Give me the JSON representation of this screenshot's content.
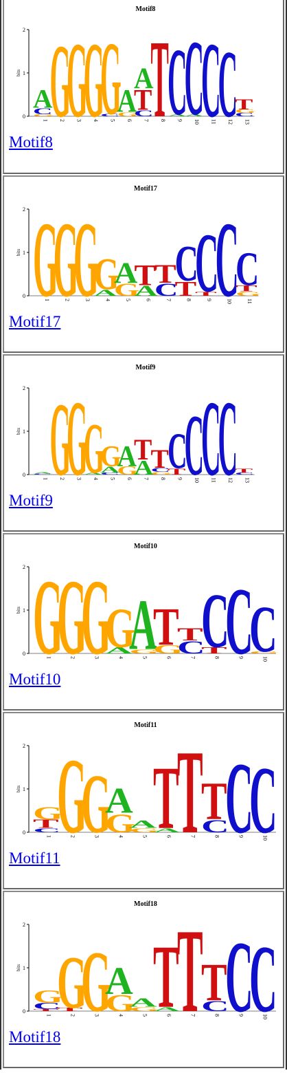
{
  "colors": {
    "A": "#1fb31f",
    "C": "#1010cc",
    "G": "#ffa500",
    "T": "#d01010",
    "link": "#0000ee"
  },
  "axis": {
    "ylabel": "bits",
    "ticks": [
      "0",
      "1",
      "2"
    ]
  },
  "motifs": [
    {
      "title": "Motif8",
      "link": "Motif8",
      "x0": 38,
      "colw": 24.5,
      "positions": [
        [
          [
            "A",
            0.45
          ],
          [
            "C",
            0.15
          ],
          [
            "G",
            0.05
          ]
        ],
        [
          [
            "G",
            1.75
          ]
        ],
        [
          [
            "G",
            1.8
          ]
        ],
        [
          [
            "G",
            1.8
          ]
        ],
        [
          [
            "G",
            1.75
          ],
          [
            "C",
            0.06
          ]
        ],
        [
          [
            "A",
            0.55
          ],
          [
            "G",
            0.1
          ]
        ],
        [
          [
            "A",
            0.5
          ],
          [
            "T",
            0.5
          ],
          [
            "C",
            0.15
          ]
        ],
        [
          [
            "T",
            1.85
          ]
        ],
        [
          [
            "C",
            1.6
          ],
          [
            "A",
            0.05
          ]
        ],
        [
          [
            "C",
            1.8
          ],
          [
            "A",
            0.05
          ]
        ],
        [
          [
            "C",
            1.8
          ]
        ],
        [
          [
            "C",
            1.6
          ]
        ],
        [
          [
            "T",
            0.25
          ],
          [
            "G",
            0.08
          ],
          [
            "C",
            0.08
          ]
        ]
      ]
    },
    {
      "title": "Motif17",
      "link": "Motif17",
      "x0": 38,
      "colw": 29.5,
      "positions": [
        [
          [
            "G",
            1.8
          ]
        ],
        [
          [
            "G",
            1.8
          ]
        ],
        [
          [
            "G",
            1.8
          ]
        ],
        [
          [
            "G",
            0.75
          ],
          [
            "A",
            0.15
          ]
        ],
        [
          [
            "A",
            0.5
          ],
          [
            "G",
            0.3
          ]
        ],
        [
          [
            "T",
            0.5
          ],
          [
            "A",
            0.25
          ]
        ],
        [
          [
            "T",
            0.45
          ],
          [
            "C",
            0.3
          ]
        ],
        [
          [
            "C",
            0.85
          ],
          [
            "T",
            0.35
          ]
        ],
        [
          [
            "C",
            1.4
          ],
          [
            "T",
            0.1
          ]
        ],
        [
          [
            "C",
            1.8
          ]
        ],
        [
          [
            "C",
            0.8
          ],
          [
            "T",
            0.15
          ],
          [
            "G",
            0.1
          ]
        ]
      ]
    },
    {
      "title": "Motif9",
      "link": "Motif9",
      "x0": 38,
      "colw": 24.5,
      "positions": [
        [
          [
            "A",
            0.03
          ],
          [
            "C",
            0.02
          ]
        ],
        [
          [
            "G",
            1.75
          ]
        ],
        [
          [
            "G",
            1.8
          ]
        ],
        [
          [
            "G",
            1.2
          ],
          [
            "A",
            0.05
          ]
        ],
        [
          [
            "G",
            0.5
          ],
          [
            "A",
            0.15
          ],
          [
            "C",
            0.05
          ]
        ],
        [
          [
            "A",
            0.5
          ],
          [
            "G",
            0.2
          ]
        ],
        [
          [
            "T",
            0.5
          ],
          [
            "A",
            0.35
          ]
        ],
        [
          [
            "T",
            0.45
          ],
          [
            "C",
            0.1
          ],
          [
            "G",
            0.06
          ]
        ],
        [
          [
            "C",
            0.85
          ],
          [
            "T",
            0.15
          ]
        ],
        [
          [
            "C",
            1.45
          ]
        ],
        [
          [
            "C",
            1.8
          ]
        ],
        [
          [
            "C",
            1.8
          ]
        ],
        [
          [
            "T",
            0.1
          ],
          [
            "C",
            0.05
          ]
        ]
      ]
    },
    {
      "title": "Motif10",
      "link": "Motif10",
      "x0": 38,
      "colw": 35,
      "positions": [
        [
          [
            "G",
            1.8
          ]
        ],
        [
          [
            "G",
            1.8
          ]
        ],
        [
          [
            "G",
            1.8
          ]
        ],
        [
          [
            "G",
            0.95
          ],
          [
            "A",
            0.15
          ]
        ],
        [
          [
            "A",
            1.2
          ],
          [
            "G",
            0.1
          ]
        ],
        [
          [
            "T",
            0.9
          ],
          [
            "G",
            0.2
          ]
        ],
        [
          [
            "T",
            0.3
          ],
          [
            "C",
            0.3
          ]
        ],
        [
          [
            "C",
            1.3
          ],
          [
            "T",
            0.15
          ]
        ],
        [
          [
            "C",
            1.6
          ]
        ],
        [
          [
            "C",
            1.1
          ],
          [
            "G",
            0.05
          ]
        ]
      ]
    },
    {
      "title": "Motif11",
      "link": "Motif11",
      "x0": 38,
      "colw": 35,
      "positions": [
        [
          [
            "G",
            0.3
          ],
          [
            "T",
            0.2
          ],
          [
            "C",
            0.1
          ]
        ],
        [
          [
            "G",
            1.8
          ]
        ],
        [
          [
            "G",
            1.4
          ]
        ],
        [
          [
            "A",
            0.6
          ],
          [
            "G",
            0.45
          ]
        ],
        [
          [
            "A",
            0.18
          ],
          [
            "G",
            0.1
          ]
        ],
        [
          [
            "T",
            1.5
          ],
          [
            "A",
            0.1
          ]
        ],
        [
          [
            "T",
            2.0
          ]
        ],
        [
          [
            "T",
            0.9
          ],
          [
            "C",
            0.3
          ]
        ],
        [
          [
            "C",
            1.7
          ]
        ],
        [
          [
            "C",
            1.6
          ]
        ]
      ]
    },
    {
      "title": "Motif18",
      "link": "Motif18",
      "x0": 38,
      "colw": 35,
      "positions": [
        [
          [
            "G",
            0.3
          ],
          [
            "C",
            0.15
          ],
          [
            "T",
            0.05
          ]
        ],
        [
          [
            "G",
            1.25
          ],
          [
            "T",
            0.08
          ]
        ],
        [
          [
            "G",
            1.45
          ]
        ],
        [
          [
            "A",
            0.65
          ],
          [
            "G",
            0.4
          ]
        ],
        [
          [
            "A",
            0.2
          ],
          [
            "G",
            0.1
          ]
        ],
        [
          [
            "T",
            1.5
          ],
          [
            "A",
            0.1
          ]
        ],
        [
          [
            "T",
            2.0
          ]
        ],
        [
          [
            "T",
            0.9
          ],
          [
            "C",
            0.25
          ]
        ],
        [
          [
            "C",
            1.7
          ]
        ],
        [
          [
            "C",
            1.6
          ]
        ]
      ]
    }
  ]
}
